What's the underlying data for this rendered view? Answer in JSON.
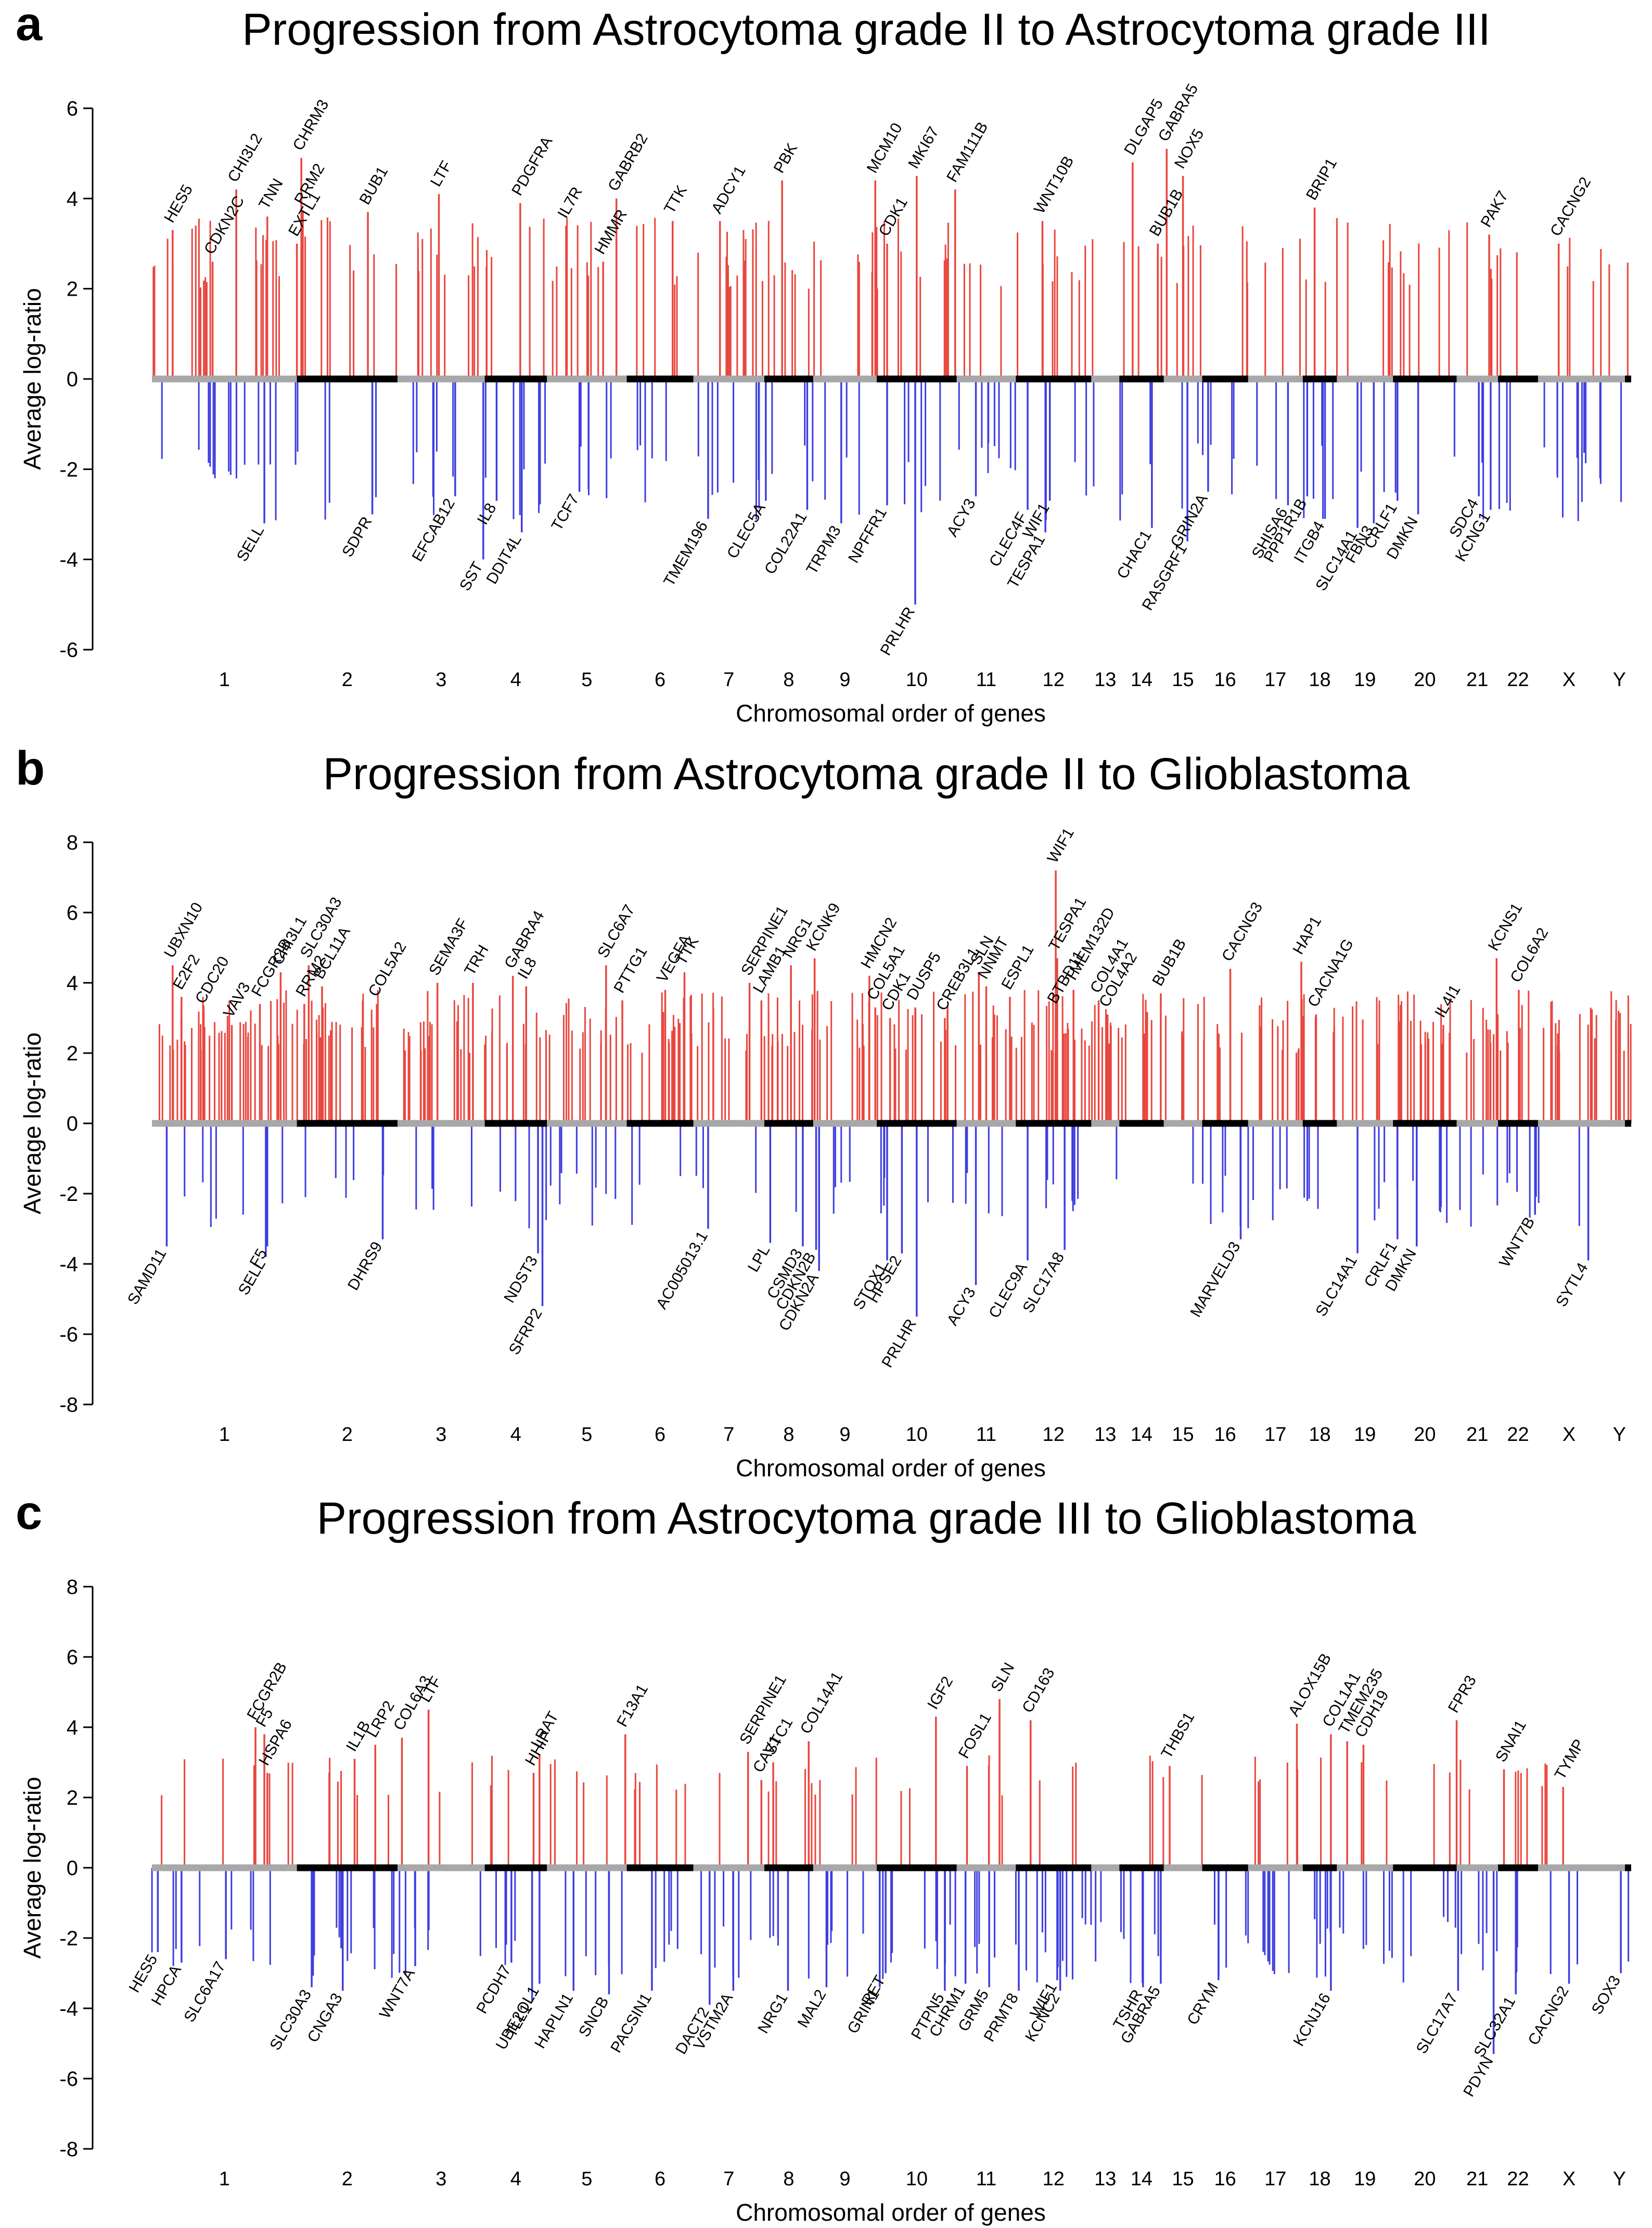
{
  "chart_data": [
    {
      "type": "bar",
      "panel": "a",
      "title": "Progression from Astrocytoma grade II to Astrocytoma grade III",
      "xlabel": "Chromosomal order of genes",
      "ylabel": "Average log-ratio",
      "ylim": [
        -6,
        6
      ],
      "yticks": [
        6,
        4,
        2,
        0,
        -2,
        -4,
        -6
      ],
      "chromosomes": [
        "1",
        "2",
        "3",
        "4",
        "5",
        "6",
        "7",
        "8",
        "9",
        "10",
        "11",
        "12",
        "13",
        "14",
        "15",
        "16",
        "17",
        "18",
        "19",
        "20",
        "21",
        "22",
        "X",
        "Y"
      ],
      "labels_up": [
        {
          "gene": "HES5",
          "x": 0.014,
          "y": 3.3
        },
        {
          "gene": "CDKN2C",
          "x": 0.041,
          "y": 2.6
        },
        {
          "gene": "CHI3L2",
          "x": 0.057,
          "y": 4.2
        },
        {
          "gene": "TNN",
          "x": 0.078,
          "y": 3.6
        },
        {
          "gene": "CHRM3",
          "x": 0.101,
          "y": 4.9
        },
        {
          "gene": "RRM2",
          "x": 0.102,
          "y": 3.7
        },
        {
          "gene": "EXTL1",
          "x": 0.098,
          "y": 3.0
        },
        {
          "gene": "BUB1",
          "x": 0.146,
          "y": 3.7
        },
        {
          "gene": "LTF",
          "x": 0.194,
          "y": 4.1
        },
        {
          "gene": "PDGFRA",
          "x": 0.249,
          "y": 3.9
        },
        {
          "gene": "IL7R",
          "x": 0.28,
          "y": 3.4
        },
        {
          "gene": "GABRB2",
          "x": 0.314,
          "y": 4.0
        },
        {
          "gene": "HMMR",
          "x": 0.305,
          "y": 2.6
        },
        {
          "gene": "TTK",
          "x": 0.352,
          "y": 3.5
        },
        {
          "gene": "ADCY1",
          "x": 0.384,
          "y": 3.5
        },
        {
          "gene": "PBK",
          "x": 0.426,
          "y": 4.4
        },
        {
          "gene": "MCM10",
          "x": 0.489,
          "y": 4.4
        },
        {
          "gene": "MKI67",
          "x": 0.517,
          "y": 4.5
        },
        {
          "gene": "FAM111B",
          "x": 0.543,
          "y": 4.2
        },
        {
          "gene": "CDK1",
          "x": 0.497,
          "y": 3.0
        },
        {
          "gene": "WNT10B",
          "x": 0.602,
          "y": 3.5
        },
        {
          "gene": "DLGAP5",
          "x": 0.663,
          "y": 4.8
        },
        {
          "gene": "GABRA5",
          "x": 0.686,
          "y": 5.1
        },
        {
          "gene": "NOX5",
          "x": 0.697,
          "y": 4.5
        },
        {
          "gene": "BUB1B",
          "x": 0.68,
          "y": 3.0
        },
        {
          "gene": "BRIP1",
          "x": 0.786,
          "y": 3.8
        },
        {
          "gene": "PAK7",
          "x": 0.904,
          "y": 3.2
        },
        {
          "gene": "CACNG2",
          "x": 0.951,
          "y": 3.0
        }
      ],
      "labels_down": [
        {
          "gene": "SELL",
          "x": 0.076,
          "y": -3.2
        },
        {
          "gene": "SDPR",
          "x": 0.149,
          "y": -3.0
        },
        {
          "gene": "EFCAB12",
          "x": 0.205,
          "y": -2.6
        },
        {
          "gene": "SST",
          "x": 0.224,
          "y": -4.0
        },
        {
          "gene": "IL8",
          "x": 0.233,
          "y": -2.7
        },
        {
          "gene": "DDIT4L",
          "x": 0.25,
          "y": -3.4
        },
        {
          "gene": "TCF7",
          "x": 0.289,
          "y": -2.5
        },
        {
          "gene": "TMEM196",
          "x": 0.376,
          "y": -3.1
        },
        {
          "gene": "CLEC5A",
          "x": 0.415,
          "y": -2.7
        },
        {
          "gene": "COL22A1",
          "x": 0.443,
          "y": -2.9
        },
        {
          "gene": "TRPM3",
          "x": 0.466,
          "y": -3.2
        },
        {
          "gene": "NPFFR1",
          "x": 0.497,
          "y": -2.8
        },
        {
          "gene": "PRLHR",
          "x": 0.516,
          "y": -5.0
        },
        {
          "gene": "ACY3",
          "x": 0.557,
          "y": -2.6
        },
        {
          "gene": "CLEC4F",
          "x": 0.592,
          "y": -2.9
        },
        {
          "gene": "WIF1",
          "x": 0.607,
          "y": -2.7
        },
        {
          "gene": "TESPA1",
          "x": 0.604,
          "y": -3.4
        },
        {
          "gene": "CHAC1",
          "x": 0.676,
          "y": -3.3
        },
        {
          "gene": "RASGRF1",
          "x": 0.7,
          "y": -3.6
        },
        {
          "gene": "GRIN2A",
          "x": 0.714,
          "y": -2.5
        },
        {
          "gene": "SHISA6",
          "x": 0.768,
          "y": -2.8
        },
        {
          "gene": "PPP1R1B",
          "x": 0.781,
          "y": -2.6
        },
        {
          "gene": "ITGB4",
          "x": 0.793,
          "y": -3.1
        },
        {
          "gene": "SLC14A1",
          "x": 0.815,
          "y": -3.3
        },
        {
          "gene": "FBN3",
          "x": 0.826,
          "y": -3.2
        },
        {
          "gene": "CRLF1",
          "x": 0.842,
          "y": -2.7
        },
        {
          "gene": "DMKN",
          "x": 0.856,
          "y": -3.0
        },
        {
          "gene": "SDC4",
          "x": 0.897,
          "y": -2.6
        },
        {
          "gene": "KCNG1",
          "x": 0.905,
          "y": -2.9
        }
      ]
    },
    {
      "type": "bar",
      "panel": "b",
      "title": "Progression from Astrocytoma grade II to Glioblastoma",
      "xlabel": "Chromosomal order of genes",
      "ylabel": "Average log-ratio",
      "ylim": [
        -8,
        8
      ],
      "yticks": [
        8,
        6,
        4,
        2,
        0,
        -2,
        -4,
        -6,
        -8
      ],
      "chromosomes": [
        "1",
        "2",
        "3",
        "4",
        "5",
        "6",
        "7",
        "8",
        "9",
        "10",
        "11",
        "12",
        "13",
        "14",
        "15",
        "16",
        "17",
        "18",
        "19",
        "20",
        "21",
        "22",
        "X",
        "Y"
      ],
      "labels_up": [
        {
          "gene": "UBXN10",
          "x": 0.014,
          "y": 4.5
        },
        {
          "gene": "E2F2",
          "x": 0.02,
          "y": 3.6
        },
        {
          "gene": "CDC20",
          "x": 0.035,
          "y": 3.2
        },
        {
          "gene": "VAV3",
          "x": 0.054,
          "y": 2.8
        },
        {
          "gene": "FCGR2B",
          "x": 0.073,
          "y": 3.4
        },
        {
          "gene": "CHI3L1",
          "x": 0.087,
          "y": 4.3
        },
        {
          "gene": "SLC30A3",
          "x": 0.106,
          "y": 4.5
        },
        {
          "gene": "RRM2",
          "x": 0.103,
          "y": 3.4
        },
        {
          "gene": "BCL11A",
          "x": 0.115,
          "y": 3.9
        },
        {
          "gene": "COL5A2",
          "x": 0.152,
          "y": 3.4
        },
        {
          "gene": "SEMA3F",
          "x": 0.193,
          "y": 4.0
        },
        {
          "gene": "TRH",
          "x": 0.217,
          "y": 4.0
        },
        {
          "gene": "GABRA4",
          "x": 0.244,
          "y": 4.2
        },
        {
          "gene": "IL8",
          "x": 0.253,
          "y": 3.9
        },
        {
          "gene": "SLC6A7",
          "x": 0.307,
          "y": 4.5
        },
        {
          "gene": "PTTG1",
          "x": 0.318,
          "y": 3.5
        },
        {
          "gene": "VEGFA",
          "x": 0.347,
          "y": 3.8
        },
        {
          "gene": "TTK",
          "x": 0.36,
          "y": 4.3
        },
        {
          "gene": "SERPINE1",
          "x": 0.404,
          "y": 4.0
        },
        {
          "gene": "LAMB1",
          "x": 0.412,
          "y": 3.5
        },
        {
          "gene": "NRG1",
          "x": 0.432,
          "y": 4.5
        },
        {
          "gene": "KCNK9",
          "x": 0.448,
          "y": 4.7
        },
        {
          "gene": "HMCN2",
          "x": 0.485,
          "y": 4.2
        },
        {
          "gene": "COL5A1",
          "x": 0.489,
          "y": 3.3
        },
        {
          "gene": "CDK1",
          "x": 0.499,
          "y": 3.0
        },
        {
          "gene": "DUSP5",
          "x": 0.516,
          "y": 3.3
        },
        {
          "gene": "CREB3L1",
          "x": 0.536,
          "y": 3.0
        },
        {
          "gene": "SLN",
          "x": 0.559,
          "y": 4.3
        },
        {
          "gene": "NNMT",
          "x": 0.564,
          "y": 3.9
        },
        {
          "gene": "ESPL1",
          "x": 0.58,
          "y": 3.6
        },
        {
          "gene": "WIF1",
          "x": 0.611,
          "y": 7.2
        },
        {
          "gene": "TESPA1",
          "x": 0.612,
          "y": 4.7
        },
        {
          "gene": "TMEM132D",
          "x": 0.623,
          "y": 3.8
        },
        {
          "gene": "BTBD11",
          "x": 0.611,
          "y": 3.2
        },
        {
          "gene": "COL4A1",
          "x": 0.64,
          "y": 3.5
        },
        {
          "gene": "COL4A2",
          "x": 0.646,
          "y": 3.1
        },
        {
          "gene": "BUB1B",
          "x": 0.682,
          "y": 3.7
        },
        {
          "gene": "CACNG3",
          "x": 0.729,
          "y": 4.4
        },
        {
          "gene": "HAP1",
          "x": 0.777,
          "y": 4.6
        },
        {
          "gene": "CACNA1G",
          "x": 0.787,
          "y": 3.1
        },
        {
          "gene": "IL4I1",
          "x": 0.873,
          "y": 2.8
        },
        {
          "gene": "KCNS1",
          "x": 0.909,
          "y": 4.7
        },
        {
          "gene": "COL6A2",
          "x": 0.924,
          "y": 3.8
        }
      ],
      "labels_down": [
        {
          "gene": "SAMD11",
          "x": 0.01,
          "y": -3.5
        },
        {
          "gene": "F5",
          "x": 0.078,
          "y": -3.5
        },
        {
          "gene": "SELL",
          "x": 0.077,
          "y": -3.8
        },
        {
          "gene": "DHRS9",
          "x": 0.156,
          "y": -3.3
        },
        {
          "gene": "NDST3",
          "x": 0.261,
          "y": -3.7
        },
        {
          "gene": "SFRP2",
          "x": 0.264,
          "y": -5.2
        },
        {
          "gene": "AC005013.1",
          "x": 0.376,
          "y": -3.0
        },
        {
          "gene": "LPL",
          "x": 0.418,
          "y": -3.4
        },
        {
          "gene": "CSMD3",
          "x": 0.44,
          "y": -3.5
        },
        {
          "gene": "CDKN2B",
          "x": 0.449,
          "y": -3.6
        },
        {
          "gene": "CDKN2A",
          "x": 0.451,
          "y": -4.2
        },
        {
          "gene": "STOX1",
          "x": 0.497,
          "y": -3.9
        },
        {
          "gene": "HPSE2",
          "x": 0.507,
          "y": -3.7
        },
        {
          "gene": "PRLHR",
          "x": 0.517,
          "y": -5.5
        },
        {
          "gene": "ACY3",
          "x": 0.557,
          "y": -4.6
        },
        {
          "gene": "CLEC9A",
          "x": 0.592,
          "y": -3.9
        },
        {
          "gene": "SLC17A8",
          "x": 0.617,
          "y": -3.6
        },
        {
          "gene": "MARVELD3",
          "x": 0.736,
          "y": -3.3
        },
        {
          "gene": "SLC14A1",
          "x": 0.815,
          "y": -3.7
        },
        {
          "gene": "CRLF1",
          "x": 0.842,
          "y": -3.3
        },
        {
          "gene": "DMKN",
          "x": 0.855,
          "y": -3.5
        },
        {
          "gene": "WNT7B",
          "x": 0.935,
          "y": -2.6
        },
        {
          "gene": "SYTL4",
          "x": 0.971,
          "y": -3.9
        }
      ]
    },
    {
      "type": "bar",
      "panel": "c",
      "title": "Progression from Astrocytoma grade III to Glioblastoma",
      "xlabel": "Chromosomal order of genes",
      "ylabel": "Average log-ratio",
      "ylim": [
        -8,
        8
      ],
      "yticks": [
        8,
        6,
        4,
        2,
        0,
        -2,
        -4,
        -6,
        -8
      ],
      "chromosomes": [
        "1",
        "2",
        "3",
        "4",
        "5",
        "6",
        "7",
        "8",
        "9",
        "10",
        "11",
        "12",
        "13",
        "14",
        "15",
        "16",
        "17",
        "18",
        "19",
        "20",
        "21",
        "22",
        "X",
        "Y"
      ],
      "labels_up": [
        {
          "gene": "FCGR2B",
          "x": 0.07,
          "y": 4.0
        },
        {
          "gene": "F5",
          "x": 0.076,
          "y": 3.8
        },
        {
          "gene": "HSPA6",
          "x": 0.078,
          "y": 2.7
        },
        {
          "gene": "IL1B",
          "x": 0.137,
          "y": 3.1
        },
        {
          "gene": "LRP2",
          "x": 0.151,
          "y": 3.5
        },
        {
          "gene": "COL6A3",
          "x": 0.169,
          "y": 3.7
        },
        {
          "gene": "LTF",
          "x": 0.187,
          "y": 4.5
        },
        {
          "gene": "LRAT",
          "x": 0.262,
          "y": 3.2
        },
        {
          "gene": "HHIP",
          "x": 0.258,
          "y": 2.7
        },
        {
          "gene": "F13A1",
          "x": 0.32,
          "y": 3.8
        },
        {
          "gene": "SERPINE1",
          "x": 0.403,
          "y": 3.3
        },
        {
          "gene": "CAV1",
          "x": 0.412,
          "y": 2.5
        },
        {
          "gene": "STC1",
          "x": 0.42,
          "y": 3.0
        },
        {
          "gene": "COL14A1",
          "x": 0.444,
          "y": 3.6
        },
        {
          "gene": "IGF2",
          "x": 0.53,
          "y": 4.3
        },
        {
          "gene": "FOSL1",
          "x": 0.551,
          "y": 2.9
        },
        {
          "gene": "SLN",
          "x": 0.573,
          "y": 4.8
        },
        {
          "gene": "CD163",
          "x": 0.594,
          "y": 4.2
        },
        {
          "gene": "THBS1",
          "x": 0.688,
          "y": 2.9
        },
        {
          "gene": "ALOX15B",
          "x": 0.774,
          "y": 4.1
        },
        {
          "gene": "COL1A1",
          "x": 0.797,
          "y": 3.8
        },
        {
          "gene": "TMEM235",
          "x": 0.808,
          "y": 3.6
        },
        {
          "gene": "CDH19",
          "x": 0.819,
          "y": 3.5
        },
        {
          "gene": "FPR3",
          "x": 0.882,
          "y": 4.2
        },
        {
          "gene": "SNAI1",
          "x": 0.914,
          "y": 2.8
        },
        {
          "gene": "TYMP",
          "x": 0.954,
          "y": 2.3
        }
      ],
      "labels_down": [
        {
          "gene": "HES5",
          "x": 0.004,
          "y": -2.4
        },
        {
          "gene": "HPCA",
          "x": 0.02,
          "y": -2.7
        },
        {
          "gene": "SLC6A17",
          "x": 0.05,
          "y": -2.6
        },
        {
          "gene": "SLC30A3",
          "x": 0.108,
          "y": -3.4
        },
        {
          "gene": "CNGA3",
          "x": 0.129,
          "y": -3.5
        },
        {
          "gene": "WNT7A",
          "x": 0.178,
          "y": -2.8
        },
        {
          "gene": "PCDH7",
          "x": 0.243,
          "y": -2.7
        },
        {
          "gene": "UBE2QL1",
          "x": 0.262,
          "y": -3.3
        },
        {
          "gene": "TLL1",
          "x": 0.257,
          "y": -3.8
        },
        {
          "gene": "HAPLN1",
          "x": 0.285,
          "y": -3.5
        },
        {
          "gene": "SNCB",
          "x": 0.309,
          "y": -3.6
        },
        {
          "gene": "PACSIN1",
          "x": 0.338,
          "y": -3.5
        },
        {
          "gene": "DACT2",
          "x": 0.377,
          "y": -3.9
        },
        {
          "gene": "VSTM2A",
          "x": 0.393,
          "y": -3.5
        },
        {
          "gene": "NRG1",
          "x": 0.43,
          "y": -3.5
        },
        {
          "gene": "MAL2",
          "x": 0.456,
          "y": -3.4
        },
        {
          "gene": "GRIN1",
          "x": 0.492,
          "y": -3.4
        },
        {
          "gene": "RET",
          "x": 0.496,
          "y": -3.0
        },
        {
          "gene": "PTPN5",
          "x": 0.536,
          "y": -3.5
        },
        {
          "gene": "CHRM1",
          "x": 0.55,
          "y": -3.3
        },
        {
          "gene": "GRM5",
          "x": 0.566,
          "y": -3.4
        },
        {
          "gene": "PRMT8",
          "x": 0.586,
          "y": -3.5
        },
        {
          "gene": "WIF1",
          "x": 0.612,
          "y": -3.2
        },
        {
          "gene": "KCNC2",
          "x": 0.614,
          "y": -3.5
        },
        {
          "gene": "TSHR",
          "x": 0.67,
          "y": -3.4
        },
        {
          "gene": "GABRA5",
          "x": 0.682,
          "y": -3.3
        },
        {
          "gene": "CRYM",
          "x": 0.721,
          "y": -3.2
        },
        {
          "gene": "KCNJ16",
          "x": 0.797,
          "y": -3.5
        },
        {
          "gene": "SLC17A7",
          "x": 0.883,
          "y": -3.5
        },
        {
          "gene": "PDYN",
          "x": 0.907,
          "y": -5.3
        },
        {
          "gene": "SLC32A1",
          "x": 0.922,
          "y": -3.6
        },
        {
          "gene": "CACNG2",
          "x": 0.958,
          "y": -3.3
        },
        {
          "gene": "SOX3",
          "x": 0.993,
          "y": -3.0
        }
      ]
    }
  ]
}
